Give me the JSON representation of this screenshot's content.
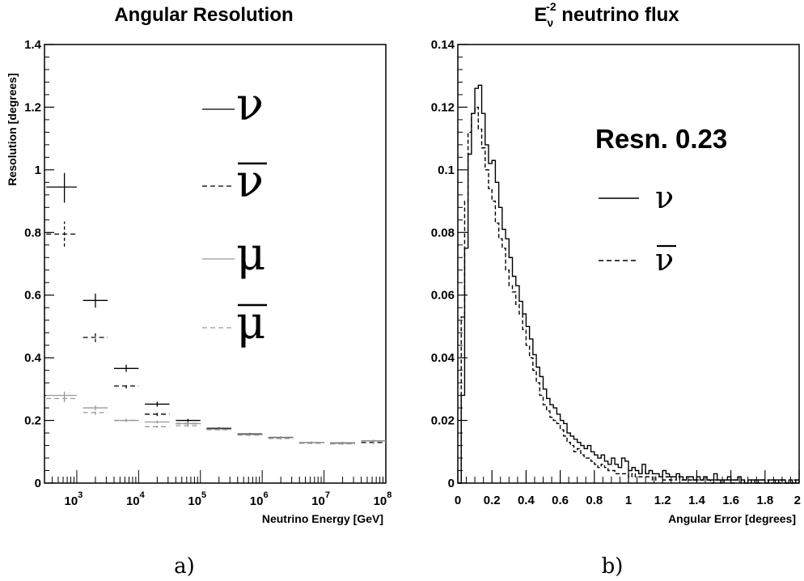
{
  "chart_data": [
    {
      "type": "scatter",
      "title": "Angular Resolution",
      "xlabel": "Neutrino Energy [GeV]",
      "ylabel": "Resolution [degrees]",
      "x_scale": "log",
      "xlim": [
        300,
        100000000
      ],
      "ylim": [
        0,
        1.4
      ],
      "yticks": [
        "0",
        "0.2",
        "0.4",
        "0.6",
        "0.8",
        "1",
        "1.2",
        "1.4"
      ],
      "xticks": [
        {
          "base": "10",
          "exp": "3"
        },
        {
          "base": "10",
          "exp": "4"
        },
        {
          "base": "10",
          "exp": "5"
        },
        {
          "base": "10",
          "exp": "6"
        },
        {
          "base": "10",
          "exp": "7"
        },
        {
          "base": "10",
          "exp": "8"
        }
      ],
      "caption": "a)",
      "grid": false,
      "series": [
        {
          "name": "ν",
          "color": "#000000",
          "dash": "solid",
          "points": [
            {
              "x": 630,
              "y": 0.945,
              "xlo": 320,
              "xhi": 1000,
              "ylo": 0.895,
              "yhi": 0.99
            },
            {
              "x": 2000,
              "y": 0.583,
              "xlo": 1260,
              "xhi": 3160,
              "ylo": 0.56,
              "yhi": 0.605
            },
            {
              "x": 6300,
              "y": 0.366,
              "xlo": 4000,
              "xhi": 10000,
              "ylo": 0.355,
              "yhi": 0.378
            },
            {
              "x": 20000,
              "y": 0.252,
              "xlo": 12600,
              "xhi": 31600,
              "ylo": 0.244,
              "yhi": 0.26
            },
            {
              "x": 63000,
              "y": 0.2,
              "xlo": 40000,
              "xhi": 100000,
              "ylo": 0.195,
              "yhi": 0.205
            },
            {
              "x": 200000,
              "y": 0.175,
              "xlo": 126000,
              "xhi": 316000,
              "ylo": 0.172,
              "yhi": 0.178
            },
            {
              "x": 630000,
              "y": 0.157,
              "xlo": 400000,
              "xhi": 1000000,
              "ylo": 0.154,
              "yhi": 0.16
            },
            {
              "x": 2000000,
              "y": 0.146,
              "xlo": 1260000,
              "xhi": 3160000,
              "ylo": 0.143,
              "yhi": 0.149
            },
            {
              "x": 6300000,
              "y": 0.13,
              "xlo": 4000000,
              "xhi": 10000000,
              "ylo": 0.127,
              "yhi": 0.133
            },
            {
              "x": 20000000,
              "y": 0.128,
              "xlo": 12600000,
              "xhi": 31600000,
              "ylo": 0.125,
              "yhi": 0.131
            },
            {
              "x": 63000000,
              "y": 0.135,
              "xlo": 40000000,
              "xhi": 100000000,
              "ylo": 0.132,
              "yhi": 0.138
            }
          ]
        },
        {
          "name": "ν̄",
          "overline": true,
          "color": "#000000",
          "dash": "dashed",
          "points": [
            {
              "x": 630,
              "y": 0.795,
              "xlo": 320,
              "xhi": 1000,
              "ylo": 0.755,
              "yhi": 0.835
            },
            {
              "x": 2000,
              "y": 0.465,
              "xlo": 1260,
              "xhi": 3160,
              "ylo": 0.45,
              "yhi": 0.478
            },
            {
              "x": 6300,
              "y": 0.31,
              "xlo": 4000,
              "xhi": 10000,
              "ylo": 0.302,
              "yhi": 0.318
            },
            {
              "x": 20000,
              "y": 0.22,
              "xlo": 12600,
              "xhi": 31600,
              "ylo": 0.214,
              "yhi": 0.226
            },
            {
              "x": 63000,
              "y": 0.19,
              "xlo": 40000,
              "xhi": 100000,
              "ylo": 0.186,
              "yhi": 0.194
            },
            {
              "x": 200000,
              "y": 0.172,
              "xlo": 126000,
              "xhi": 316000,
              "ylo": 0.169,
              "yhi": 0.175
            },
            {
              "x": 630000,
              "y": 0.155,
              "xlo": 400000,
              "xhi": 1000000,
              "ylo": 0.152,
              "yhi": 0.158
            },
            {
              "x": 2000000,
              "y": 0.143,
              "xlo": 1260000,
              "xhi": 3160000,
              "ylo": 0.14,
              "yhi": 0.146
            },
            {
              "x": 6300000,
              "y": 0.128,
              "xlo": 4000000,
              "xhi": 10000000,
              "ylo": 0.125,
              "yhi": 0.131
            },
            {
              "x": 20000000,
              "y": 0.126,
              "xlo": 12600000,
              "xhi": 31600000,
              "ylo": 0.123,
              "yhi": 0.129
            },
            {
              "x": 63000000,
              "y": 0.13,
              "xlo": 40000000,
              "xhi": 100000000,
              "ylo": 0.127,
              "yhi": 0.133
            }
          ]
        },
        {
          "name": "μ",
          "color": "#999999",
          "dash": "solid",
          "points": [
            {
              "x": 630,
              "y": 0.28,
              "xlo": 320,
              "xhi": 1000,
              "ylo": 0.268,
              "yhi": 0.292
            },
            {
              "x": 2000,
              "y": 0.24,
              "xlo": 1260,
              "xhi": 3160,
              "ylo": 0.232,
              "yhi": 0.248
            },
            {
              "x": 6300,
              "y": 0.2,
              "xlo": 4000,
              "xhi": 10000,
              "ylo": 0.195,
              "yhi": 0.205
            },
            {
              "x": 20000,
              "y": 0.195,
              "xlo": 12600,
              "xhi": 31600,
              "ylo": 0.19,
              "yhi": 0.2
            },
            {
              "x": 63000,
              "y": 0.19,
              "xlo": 40000,
              "xhi": 100000,
              "ylo": 0.186,
              "yhi": 0.194
            },
            {
              "x": 200000,
              "y": 0.172,
              "xlo": 126000,
              "xhi": 316000,
              "ylo": 0.169,
              "yhi": 0.175
            },
            {
              "x": 630000,
              "y": 0.155,
              "xlo": 400000,
              "xhi": 1000000,
              "ylo": 0.152,
              "yhi": 0.158
            },
            {
              "x": 2000000,
              "y": 0.145,
              "xlo": 1260000,
              "xhi": 3160000,
              "ylo": 0.142,
              "yhi": 0.148
            },
            {
              "x": 6300000,
              "y": 0.13,
              "xlo": 4000000,
              "xhi": 10000000,
              "ylo": 0.127,
              "yhi": 0.133
            },
            {
              "x": 20000000,
              "y": 0.127,
              "xlo": 12600000,
              "xhi": 31600000,
              "ylo": 0.124,
              "yhi": 0.13
            },
            {
              "x": 63000000,
              "y": 0.135,
              "xlo": 40000000,
              "xhi": 100000000,
              "ylo": 0.132,
              "yhi": 0.138
            }
          ]
        },
        {
          "name": "μ̄",
          "overline": true,
          "color": "#999999",
          "dash": "dashed",
          "points": [
            {
              "x": 630,
              "y": 0.27,
              "xlo": 320,
              "xhi": 1000,
              "ylo": 0.258,
              "yhi": 0.282
            },
            {
              "x": 2000,
              "y": 0.225,
              "xlo": 1260,
              "xhi": 3160,
              "ylo": 0.218,
              "yhi": 0.232
            },
            {
              "x": 6300,
              "y": 0.2,
              "xlo": 4000,
              "xhi": 10000,
              "ylo": 0.195,
              "yhi": 0.205
            },
            {
              "x": 20000,
              "y": 0.18,
              "xlo": 12600,
              "xhi": 31600,
              "ylo": 0.176,
              "yhi": 0.184
            },
            {
              "x": 63000,
              "y": 0.183,
              "xlo": 40000,
              "xhi": 100000,
              "ylo": 0.179,
              "yhi": 0.187
            },
            {
              "x": 200000,
              "y": 0.17,
              "xlo": 126000,
              "xhi": 316000,
              "ylo": 0.167,
              "yhi": 0.173
            },
            {
              "x": 630000,
              "y": 0.153,
              "xlo": 400000,
              "xhi": 1000000,
              "ylo": 0.15,
              "yhi": 0.156
            },
            {
              "x": 2000000,
              "y": 0.142,
              "xlo": 1260000,
              "xhi": 3160000,
              "ylo": 0.139,
              "yhi": 0.145
            },
            {
              "x": 6300000,
              "y": 0.127,
              "xlo": 4000000,
              "xhi": 10000000,
              "ylo": 0.124,
              "yhi": 0.13
            },
            {
              "x": 20000000,
              "y": 0.125,
              "xlo": 12600000,
              "xhi": 31600000,
              "ylo": 0.122,
              "yhi": 0.128
            },
            {
              "x": 63000000,
              "y": 0.128,
              "xlo": 40000000,
              "xhi": 100000000,
              "ylo": 0.125,
              "yhi": 0.131
            }
          ]
        }
      ],
      "legend": {
        "placement": "top-right",
        "entries": [
          {
            "symbol": "ν",
            "overline": false,
            "color": "#000000",
            "dash": "solid"
          },
          {
            "symbol": "ν",
            "overline": true,
            "color": "#000000",
            "dash": "dashed"
          },
          {
            "symbol": "μ",
            "overline": false,
            "color": "#999999",
            "dash": "solid"
          },
          {
            "symbol": "μ",
            "overline": true,
            "color": "#999999",
            "dash": "dashed"
          }
        ]
      }
    },
    {
      "type": "histogram",
      "title_main": "E",
      "title_sup": "-2",
      "title_sub": "ν",
      "title_rest": " neutrino flux",
      "xlabel": "Angular Error [degrees]",
      "ylabel": "",
      "xlim": [
        0,
        2
      ],
      "ylim": [
        0,
        0.14
      ],
      "yticks": [
        "0",
        "0.02",
        "0.04",
        "0.06",
        "0.08",
        "0.1",
        "0.12",
        "0.14"
      ],
      "xticks": [
        "0",
        "0.2",
        "0.4",
        "0.6",
        "0.8",
        "1",
        "1.2",
        "1.4",
        "1.6",
        "1.8",
        "2"
      ],
      "annotation": "Resn. 0.23",
      "caption": "b)",
      "bin_width": 0.02,
      "series": [
        {
          "name": "ν",
          "color": "#000000",
          "dash": "solid",
          "values": [
            0.0,
            0.028,
            0.075,
            0.105,
            0.118,
            0.126,
            0.127,
            0.118,
            0.108,
            0.102,
            0.103,
            0.096,
            0.088,
            0.081,
            0.078,
            0.072,
            0.066,
            0.063,
            0.058,
            0.054,
            0.05,
            0.046,
            0.041,
            0.037,
            0.034,
            0.03,
            0.027,
            0.025,
            0.024,
            0.022,
            0.02,
            0.019,
            0.016,
            0.015,
            0.014,
            0.013,
            0.012,
            0.011,
            0.012,
            0.01,
            0.009,
            0.008,
            0.009,
            0.007,
            0.006,
            0.008,
            0.006,
            0.005,
            0.008,
            0.007,
            0.004,
            0.005,
            0.004,
            0.003,
            0.006,
            0.003,
            0.004,
            0.003,
            0.003,
            0.002,
            0.004,
            0.003,
            0.002,
            0.002,
            0.003,
            0.002,
            0.001,
            0.002,
            0.002,
            0.001,
            0.002,
            0.001,
            0.002,
            0.001,
            0.001,
            0.003,
            0.001,
            0.001,
            0.001,
            0.002,
            0.001,
            0.001,
            0.002,
            0.001,
            0.0,
            0.001,
            0.001,
            0.0,
            0.001,
            0.001,
            0.0,
            0.001,
            0.001,
            0.0,
            0.001,
            0.001,
            0.0,
            0.001,
            0.0,
            0.001
          ]
        },
        {
          "name": "ν̄",
          "color": "#000000",
          "dash": "dashed",
          "values": [
            0.0,
            0.053,
            0.09,
            0.112,
            0.118,
            0.12,
            0.113,
            0.107,
            0.1,
            0.094,
            0.09,
            0.083,
            0.078,
            0.075,
            0.068,
            0.063,
            0.061,
            0.057,
            0.054,
            0.049,
            0.044,
            0.04,
            0.036,
            0.032,
            0.028,
            0.025,
            0.023,
            0.021,
            0.02,
            0.019,
            0.017,
            0.015,
            0.013,
            0.012,
            0.01,
            0.011,
            0.009,
            0.008,
            0.008,
            0.007,
            0.006,
            0.005,
            0.006,
            0.005,
            0.004,
            0.004,
            0.003,
            0.003,
            0.003,
            0.003,
            0.002,
            0.003,
            0.002,
            0.002,
            0.004,
            0.002,
            0.002,
            0.001,
            0.002,
            0.002,
            0.001,
            0.002,
            0.001,
            0.001,
            0.002,
            0.001,
            0.001,
            0.001,
            0.001,
            0.001,
            0.001,
            0.001,
            0.002,
            0.001,
            0.0,
            0.001,
            0.001,
            0.0,
            0.001,
            0.001,
            0.0,
            0.001,
            0.001,
            0.0,
            0.001,
            0.0,
            0.001,
            0.001,
            0.0,
            0.001,
            0.001,
            0.0,
            0.0,
            0.001,
            0.0,
            0.001,
            0.0,
            0.0,
            0.001,
            0.0
          ]
        }
      ],
      "legend": {
        "placement": "top-right",
        "entries": [
          {
            "symbol": "ν",
            "overline": false,
            "color": "#000000",
            "dash": "solid"
          },
          {
            "symbol": "ν",
            "overline": true,
            "color": "#000000",
            "dash": "dashed"
          }
        ]
      }
    }
  ]
}
